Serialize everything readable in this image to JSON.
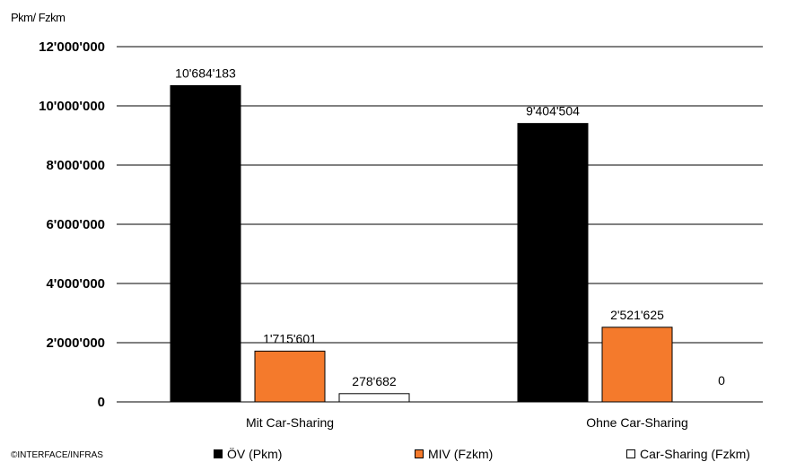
{
  "chart_data": {
    "type": "bar",
    "y_unit_label": "Pkm/ Fzkm",
    "categories": [
      "Mit Car-Sharing",
      "Ohne Car-Sharing"
    ],
    "series": [
      {
        "name": "ÖV (Pkm)",
        "color": "#000000",
        "values": [
          10684183,
          9404504
        ],
        "labels": [
          "10'684'183",
          "9'404'504"
        ]
      },
      {
        "name": "MIV (Fzkm)",
        "color": "#f47a2c",
        "values": [
          1715601,
          2521625
        ],
        "labels": [
          "1'715'601",
          "2'521'625"
        ]
      },
      {
        "name": "Car-Sharing (Fzkm)",
        "color": "#ffffff",
        "values": [
          278682,
          0
        ],
        "labels": [
          "278'682",
          "0"
        ]
      }
    ],
    "ylim": [
      0,
      12000000
    ],
    "yticks": [
      0,
      2000000,
      4000000,
      6000000,
      8000000,
      10000000,
      12000000
    ],
    "ytick_labels": [
      "0",
      "2'000'000",
      "4'000'000",
      "6'000'000",
      "8'000'000",
      "10'000'000",
      "12'000'000"
    ],
    "grid": true,
    "legend_position": "bottom"
  },
  "credit": "©INTERFACE/INFRAS"
}
